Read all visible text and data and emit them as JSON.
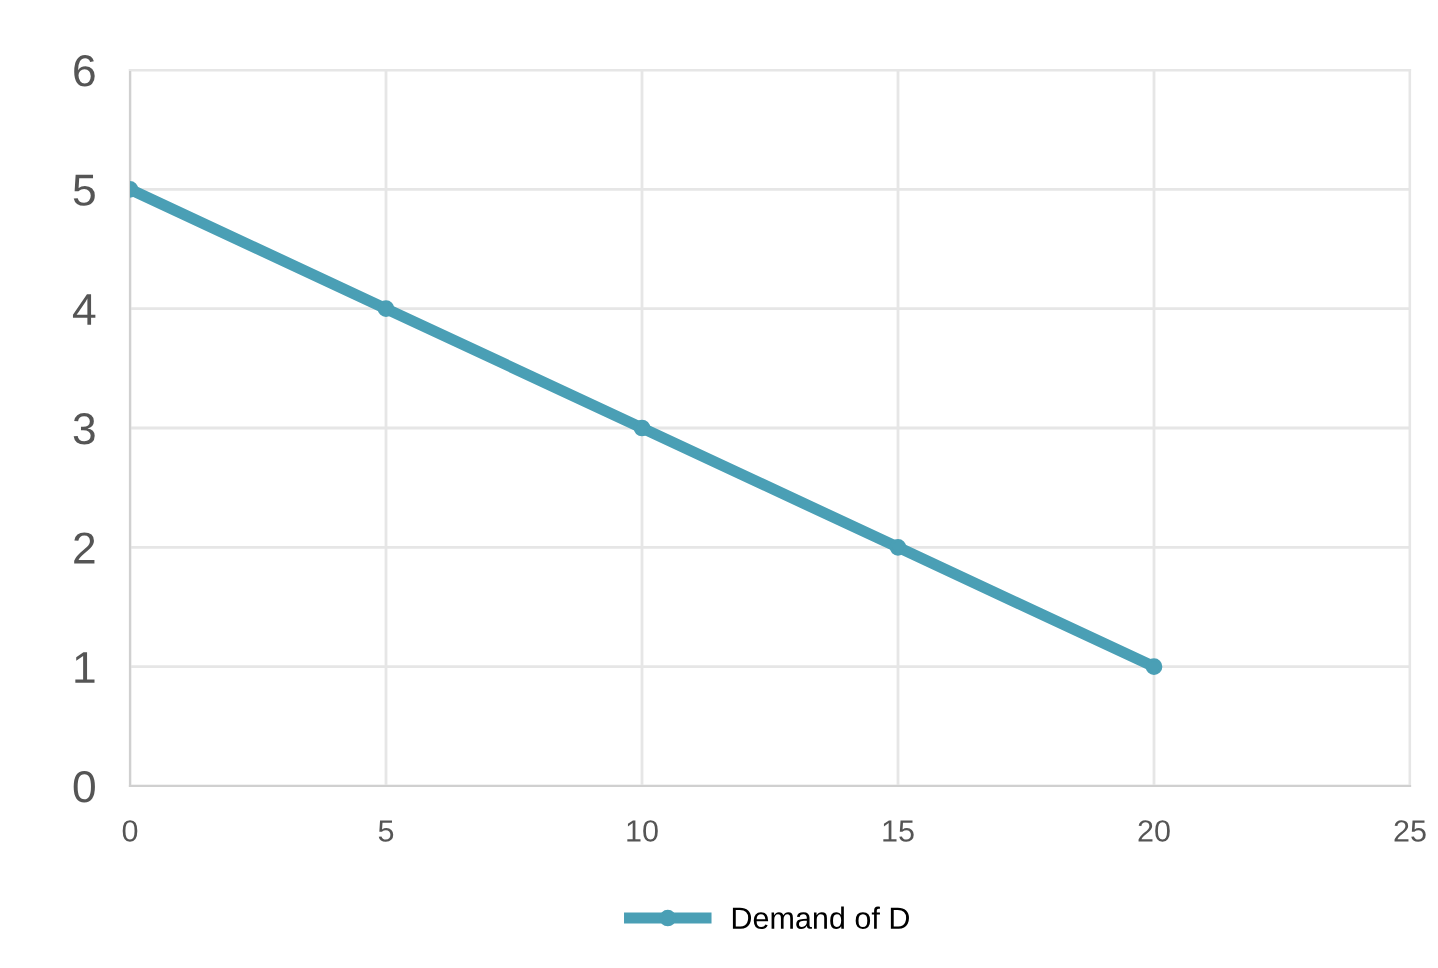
{
  "chart_data": {
    "type": "line",
    "x": [
      0,
      5,
      10,
      15,
      20
    ],
    "series": [
      {
        "name": "Demand of D",
        "color": "#4a9fb5",
        "values": [
          5,
          4,
          3,
          2,
          1
        ]
      }
    ],
    "xlim": [
      0,
      25
    ],
    "xticks": [
      0,
      5,
      10,
      15,
      20,
      25
    ],
    "ylim": [
      0,
      6
    ],
    "yticks": [
      0,
      1,
      2,
      3,
      4,
      5,
      6
    ],
    "grid": true,
    "legend": "bottom",
    "marker": "circle",
    "line_style": "solid"
  }
}
